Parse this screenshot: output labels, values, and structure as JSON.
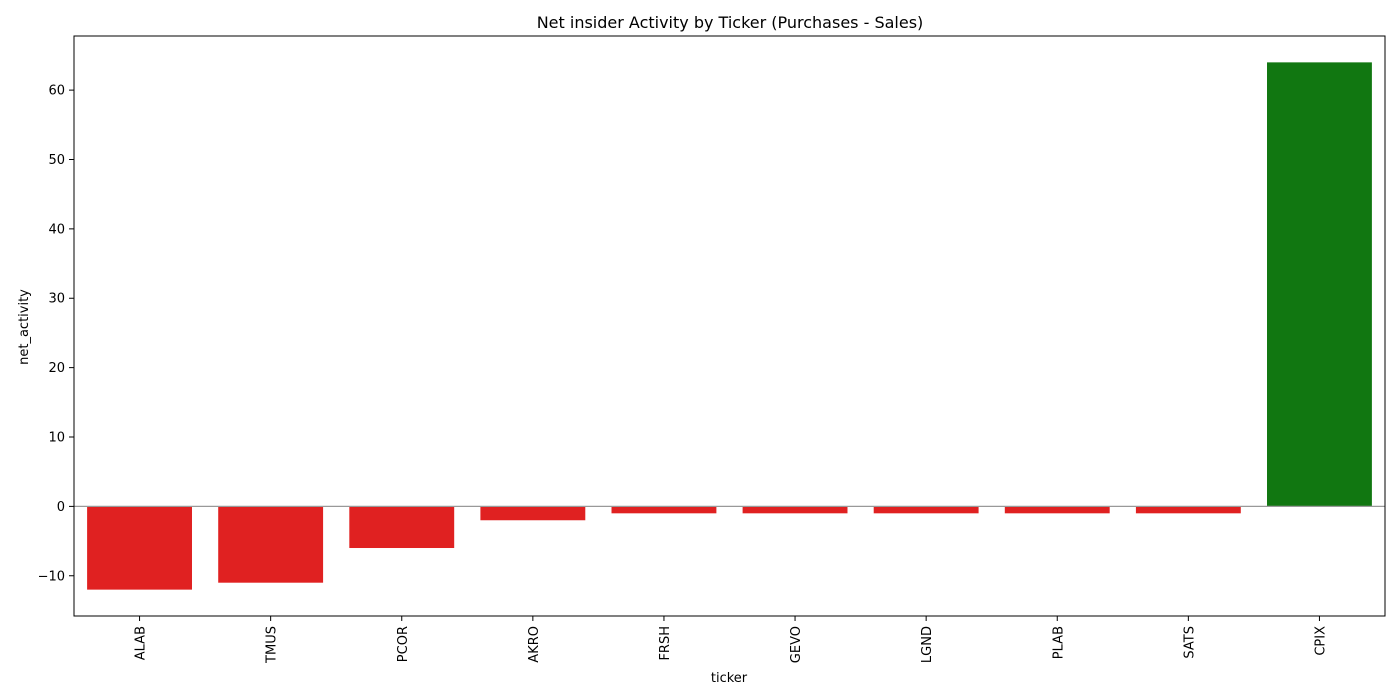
{
  "chart_data": {
    "type": "bar",
    "title": "Net insider Activity by Ticker (Purchases - Sales)",
    "xlabel": "ticker",
    "ylabel": "net_activity",
    "categories": [
      "ALAB",
      "TMUS",
      "PCOR",
      "AKRO",
      "FRSH",
      "GEVO",
      "LGND",
      "PLAB",
      "SATS",
      "CPIX"
    ],
    "values": [
      -12,
      -11,
      -6,
      -2,
      -1,
      -1,
      -1,
      -1,
      -1,
      64
    ],
    "ylim": [
      -15.8,
      67.8
    ],
    "yticks": [
      -10,
      0,
      10,
      20,
      30,
      40,
      50,
      60
    ],
    "ytick_labels": [
      "−10",
      "0",
      "10",
      "20",
      "30",
      "40",
      "50",
      "60"
    ],
    "colors": {
      "positive": "#117711",
      "negative": "#e02121",
      "zero_line": "#999999"
    },
    "grid": false,
    "legend": "none",
    "zero_reference_line": true
  }
}
